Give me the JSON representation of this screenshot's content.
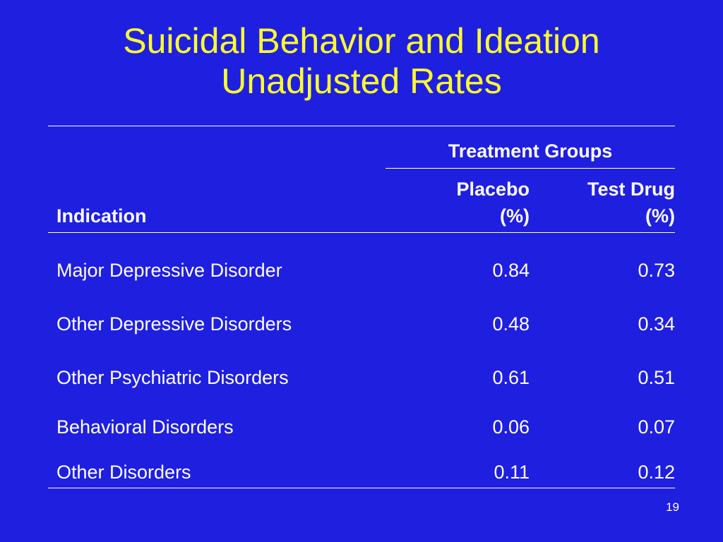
{
  "slide": {
    "title_line1": "Suicidal Behavior and Ideation",
    "title_line2": "Unadjusted Rates",
    "page_number": "19"
  },
  "table": {
    "group_header": "Treatment Groups",
    "columns": {
      "indication": "Indication",
      "placebo_line1": "Placebo",
      "placebo_line2": "(%)",
      "testdrug_line1": "Test Drug",
      "testdrug_line2": "(%)"
    },
    "rows": [
      {
        "indication": "Major Depressive Disorder",
        "placebo": "0.84",
        "test_drug": "0.73"
      },
      {
        "indication": "Other Depressive Disorders",
        "placebo": "0.48",
        "test_drug": "0.34"
      },
      {
        "indication": "Other Psychiatric Disorders",
        "placebo": "0.61",
        "test_drug": "0.51"
      },
      {
        "indication": "Behavioral Disorders",
        "placebo": "0.06",
        "test_drug": "0.07"
      },
      {
        "indication": "Other Disorders",
        "placebo": "0.11",
        "test_drug": "0.12"
      }
    ]
  },
  "colors": {
    "background": "#1f1fe0",
    "title": "#ffff2e",
    "text": "#ffffff"
  }
}
